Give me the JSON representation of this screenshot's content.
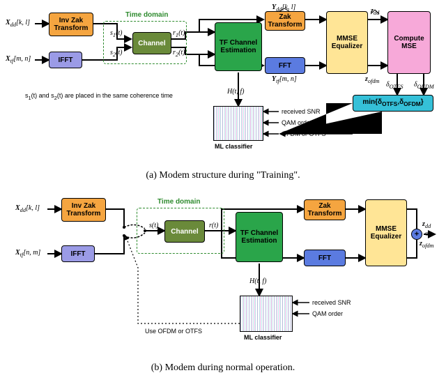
{
  "colors": {
    "orange": "#f5a540",
    "lilac": "#9b9be6",
    "olive": "#6a8a3a",
    "green": "#2aa54a",
    "blue": "#5b7be0",
    "yellow": "#ffe596",
    "pink": "#f7a9d9",
    "cyan": "#35c0d8",
    "white": "#ffffff"
  },
  "topbar": {
    "timedomain": "Time domain"
  },
  "a": {
    "caption": "(a) Modem structure during \"Training\".",
    "note_html": "s<sub>1</sub>(t) and s<sub>2</sub>(t) are placed in the same coherence time",
    "in1": "X",
    "in1sub": "dd",
    "in1arg": "[k, l]",
    "in2": "X",
    "in2sub": "tf",
    "in2arg": "[m, n]",
    "invzak": "Inv Zak\nTransform",
    "ifft": "IFFT",
    "channel": "Channel",
    "s1": "s",
    "s1sub": "1",
    "s1arg": "(t)",
    "s2": "s",
    "s2sub": "2",
    "s2arg": "(t)",
    "r1": "r",
    "r1sub": "1",
    "r1arg": "(t)",
    "r2": "r",
    "r2sub": "2",
    "r2arg": "(t)",
    "tfest": "TF Channel\nEstimation",
    "zak": "Zak\nTransform",
    "fft": "FFT",
    "Y1": "Y",
    "Y1sub": "dd",
    "Y1arg": "[k, l]",
    "Y2": "Y",
    "Y2sub": "tf",
    "Y2arg": "[m, n]",
    "Htf": "H(t, f)",
    "mmse": "MMSE\nEqualizer",
    "z1": "z",
    "z1sub": "dd",
    "z2": "z",
    "z2sub": "ofdm",
    "cmse": "Compute\nMSE",
    "d1": "δ",
    "d1sub": "OTFS",
    "d2": "δ",
    "d2sub": "OFDM",
    "minblk": "min{δ",
    "minA": "OTFS",
    "minMid": ",δ",
    "minB": "OFDM",
    "minEnd": "}",
    "mlbox": "ML classifier",
    "snr": "received SNR",
    "qam": "QAM order",
    "sel": "OFDM or OTFS"
  },
  "b": {
    "caption": "(b) Modem during normal operation.",
    "in1": "X",
    "in1sub": "dd",
    "in1arg": "[k, l]",
    "in2": "X",
    "in2sub": "tf",
    "in2arg": "[n, m]",
    "invzak": "Inv Zak\nTransform",
    "ifft": "IFFT",
    "channel": "Channel",
    "s": "s(t)",
    "r": "r(t)",
    "tfest": "TF Channel\nEstimation",
    "zak": "Zak\nTransform",
    "fft": "FFT",
    "Htf": "H(t, f)",
    "mmse": "MMSE\nEqualizer",
    "plus": "+",
    "out1": "z",
    "out1sub": "dd",
    "outor": "or",
    "out2": "z",
    "out2sub": "ofdm",
    "use": "Use OFDM or OTFS",
    "mlbox": "ML classifier",
    "snr": "received SNR",
    "qam": "QAM order"
  }
}
